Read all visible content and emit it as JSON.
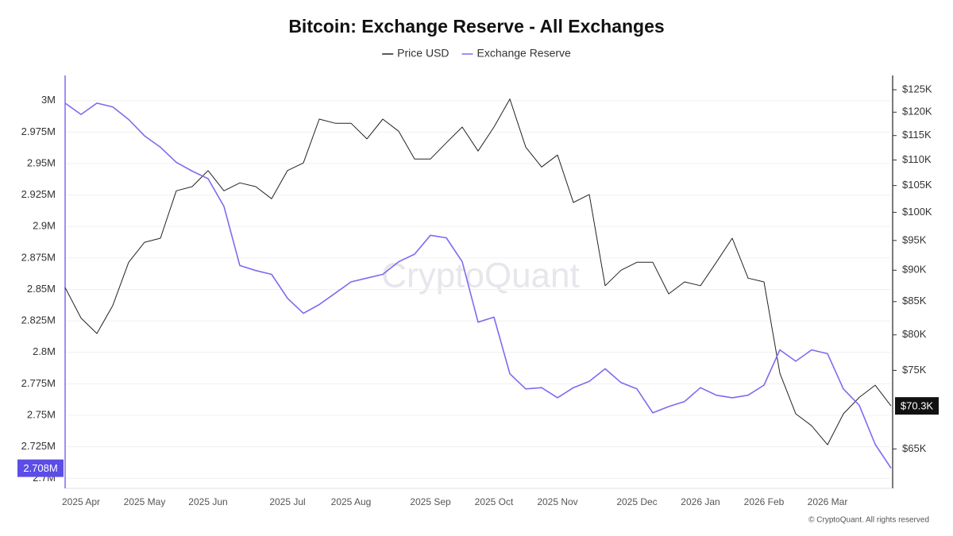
{
  "chart_data": {
    "type": "line",
    "title": "Bitcoin: Exchange Reserve - All Exchanges",
    "watermark": "CryptoQuant",
    "source": "© CryptoQuant. All rights reserved",
    "categories": [
      null,
      "2025 Apr",
      null,
      null,
      null,
      "2025 May",
      null,
      null,
      null,
      "2025 Jun",
      null,
      null,
      null,
      null,
      "2025 Jul",
      null,
      null,
      null,
      "2025 Aug",
      null,
      null,
      null,
      null,
      "2025 Sep",
      null,
      null,
      null,
      "2025 Oct",
      null,
      null,
      null,
      "2025 Nov",
      null,
      null,
      null,
      null,
      "2025 Dec",
      null,
      null,
      null,
      "2026 Jan",
      null,
      null,
      null,
      "2026 Feb",
      null,
      null,
      null,
      "2026 Mar",
      null,
      null,
      null,
      null
    ],
    "series": [
      {
        "name": "Price USD",
        "color": "#222222",
        "axis": "y2",
        "values": [
          87200,
          82500,
          80200,
          84400,
          91300,
          94700,
          95400,
          104000,
          104800,
          107900,
          104000,
          105500,
          104800,
          102500,
          107900,
          109400,
          118500,
          117600,
          117600,
          114300,
          118500,
          115900,
          110200,
          110200,
          113500,
          116800,
          111800,
          116800,
          122900,
          112600,
          108600,
          111000,
          101800,
          103300,
          87500,
          90000,
          91300,
          91300,
          86200,
          88100,
          87500,
          91300,
          95400,
          88700,
          88100,
          74600,
          69300,
          67800,
          65500,
          69300,
          71400,
          73000,
          70300
        ],
        "value_labels": [
          null,
          null,
          null,
          null,
          null,
          null,
          null,
          null,
          null,
          null,
          null,
          null,
          null,
          null,
          null,
          null,
          null,
          null,
          null,
          null,
          null,
          null,
          null,
          null,
          null,
          null,
          null,
          null,
          null,
          null,
          null,
          null,
          null,
          null,
          null,
          null,
          null,
          null,
          null,
          null,
          null,
          null,
          null,
          null,
          null,
          null,
          null,
          null,
          null,
          null,
          null,
          null,
          "$70.3K"
        ]
      },
      {
        "name": "Exchange Reserve",
        "color": "#7b6cf0",
        "values": [
          2998000,
          2989000,
          2998000,
          2995000,
          2985000,
          2972000,
          2963000,
          2951000,
          2944000,
          2938000,
          2916000,
          2869000,
          2865000,
          2862000,
          2843000,
          2831000,
          2838000,
          2847000,
          2856000,
          2859000,
          2862000,
          2872000,
          2878000,
          2893000,
          2891000,
          2872000,
          2824000,
          2828000,
          2783000,
          2771000,
          2772000,
          2764000,
          2772000,
          2777000,
          2787000,
          2776000,
          2771000,
          2752000,
          2757000,
          2761000,
          2772000,
          2766000,
          2764000,
          2766000,
          2774000,
          2802000,
          2793000,
          2802000,
          2799000,
          2771000,
          2758000,
          2727000,
          2708000
        ],
        "value_labels": [
          null,
          null,
          null,
          null,
          null,
          null,
          null,
          null,
          null,
          null,
          null,
          null,
          null,
          null,
          null,
          null,
          null,
          null,
          null,
          null,
          null,
          null,
          null,
          null,
          null,
          null,
          null,
          null,
          null,
          null,
          null,
          null,
          null,
          null,
          null,
          null,
          null,
          null,
          null,
          null,
          null,
          null,
          null,
          null,
          null,
          null,
          null,
          null,
          null,
          null,
          null,
          null,
          "2.708M"
        ]
      }
    ],
    "ylim": [
      2692000,
      3020000
    ],
    "yticks": [
      {
        "value": 2700000,
        "label": "2.7M"
      },
      {
        "value": 2725000,
        "label": "2.725M"
      },
      {
        "value": 2750000,
        "label": "2.75M"
      },
      {
        "value": 2775000,
        "label": "2.775M"
      },
      {
        "value": 2800000,
        "label": "2.8M"
      },
      {
        "value": 2825000,
        "label": "2.825M"
      },
      {
        "value": 2850000,
        "label": "2.85M"
      },
      {
        "value": 2875000,
        "label": "2.875M"
      },
      {
        "value": 2900000,
        "label": "2.9M"
      },
      {
        "value": 2925000,
        "label": "2.925M"
      },
      {
        "value": 2950000,
        "label": "2.95M"
      },
      {
        "value": 2975000,
        "label": "2.975M"
      },
      {
        "value": 3000000,
        "label": "3M"
      }
    ],
    "y2lim": [
      60500,
      128300
    ],
    "y2log": true,
    "y2ticks": [
      {
        "value": 65000,
        "label": "$65K"
      },
      {
        "value": 75000,
        "label": "$75K"
      },
      {
        "value": 80000,
        "label": "$80K"
      },
      {
        "value": 85000,
        "label": "$85K"
      },
      {
        "value": 90000,
        "label": "$90K"
      },
      {
        "value": 95000,
        "label": "$95K"
      },
      {
        "value": 100000,
        "label": "$100K"
      },
      {
        "value": 105000,
        "label": "$105K"
      },
      {
        "value": 110000,
        "label": "$110K"
      },
      {
        "value": 115000,
        "label": "$115K"
      },
      {
        "value": 120000,
        "label": "$120K"
      },
      {
        "value": 125000,
        "label": "$125K"
      }
    ],
    "grid": true,
    "legend": "top"
  }
}
